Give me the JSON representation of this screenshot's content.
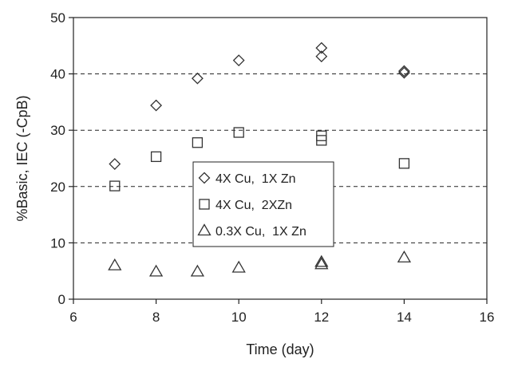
{
  "chart_data": {
    "type": "scatter",
    "title": "",
    "xlabel": "Time (day)",
    "ylabel": "%Basic, IEC (-CpB)",
    "xlim": [
      6,
      16
    ],
    "ylim": [
      0,
      50
    ],
    "xticks": [
      6,
      8,
      10,
      12,
      14,
      16
    ],
    "yticks": [
      0,
      10,
      20,
      30,
      40,
      50
    ],
    "xtick_labels": [
      "6",
      "8",
      "10",
      "12",
      "14",
      "16"
    ],
    "ytick_labels": [
      "0",
      "10",
      "20",
      "30",
      "40",
      "50"
    ],
    "grid": "horizontal dashed at 10, 20, 30, 40",
    "legend_position": "center",
    "series": [
      {
        "name": "4X Cu,  1X Zn",
        "marker": "diamond",
        "points": [
          [
            7,
            24.0
          ],
          [
            8,
            34.4
          ],
          [
            9,
            39.2
          ],
          [
            10,
            42.4
          ],
          [
            12,
            44.6
          ],
          [
            12,
            43.1
          ],
          [
            14,
            40.5
          ],
          [
            14,
            40.2
          ]
        ]
      },
      {
        "name": "4X Cu,  2XZn",
        "marker": "square",
        "points": [
          [
            7,
            20.1
          ],
          [
            8,
            25.3
          ],
          [
            9,
            27.8
          ],
          [
            10,
            29.6
          ],
          [
            12,
            29.0
          ],
          [
            12,
            28.2
          ],
          [
            14,
            24.1
          ]
        ]
      },
      {
        "name": "0.3X Cu,  1X Zn",
        "marker": "triangle",
        "points": [
          [
            7,
            6.0
          ],
          [
            8,
            4.9
          ],
          [
            9,
            4.9
          ],
          [
            10,
            5.6
          ],
          [
            12,
            6.6
          ],
          [
            12,
            6.2
          ],
          [
            14,
            7.4
          ]
        ]
      }
    ]
  }
}
